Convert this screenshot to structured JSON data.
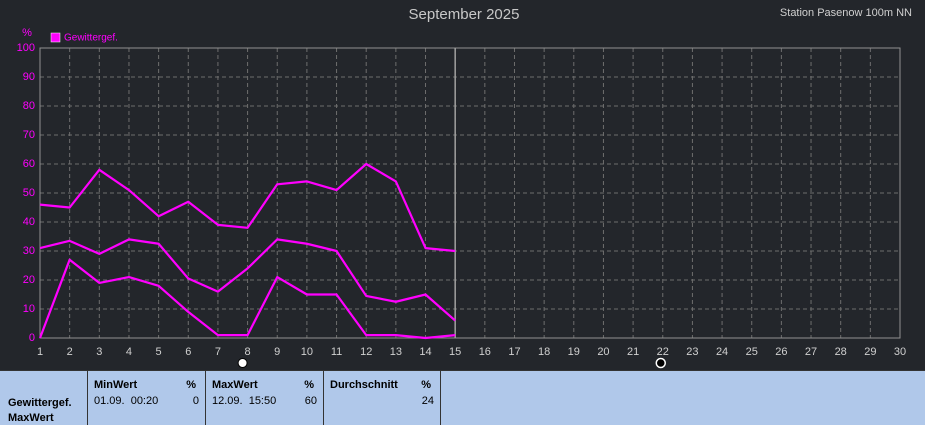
{
  "chart_data": {
    "type": "line",
    "title": "September 2025",
    "annotation": "Station Pasenow 100m NN",
    "ylabel": "%",
    "x": [
      1,
      2,
      3,
      4,
      5,
      6,
      7,
      8,
      9,
      10,
      11,
      12,
      13,
      14,
      15
    ],
    "series": [
      {
        "name": "Gewittergef.",
        "color": "#ff00ff",
        "values": [
          46,
          45,
          58,
          51,
          42,
          47,
          39,
          38,
          53,
          54,
          51,
          60,
          54,
          31,
          30
        ]
      },
      {
        "color": "#ff00ff",
        "values": [
          31,
          33.5,
          29,
          34,
          32.5,
          20.5,
          16,
          24,
          34,
          32.5,
          30,
          14.5,
          12.5,
          15,
          6
        ]
      },
      {
        "color": "#ff00ff",
        "values": [
          0,
          27,
          19,
          21,
          18,
          9,
          1,
          1,
          21,
          15,
          15,
          1,
          1,
          0,
          1
        ]
      }
    ],
    "xlim": [
      1,
      30
    ],
    "xticks": [
      1,
      2,
      3,
      4,
      5,
      6,
      7,
      8,
      9,
      10,
      11,
      12,
      13,
      14,
      15,
      16,
      17,
      18,
      19,
      20,
      21,
      22,
      23,
      24,
      25,
      26,
      27,
      28,
      29,
      30
    ],
    "ylim": [
      0,
      100
    ],
    "yticks": [
      0,
      10,
      20,
      30,
      40,
      50,
      60,
      70,
      80,
      90,
      100
    ],
    "grid": true
  },
  "summary": {
    "label": [
      "Gewittergef.",
      "MaxWert"
    ],
    "columns": [
      {
        "title": "MinWert",
        "unit": "%",
        "time": "01.09.  00:20",
        "value": 0
      },
      {
        "title": "MaxWert",
        "unit": "%",
        "time": "12.09.  15:50",
        "value": 60
      },
      {
        "title": "Durchschnitt",
        "unit": "%",
        "value": 24
      }
    ]
  }
}
